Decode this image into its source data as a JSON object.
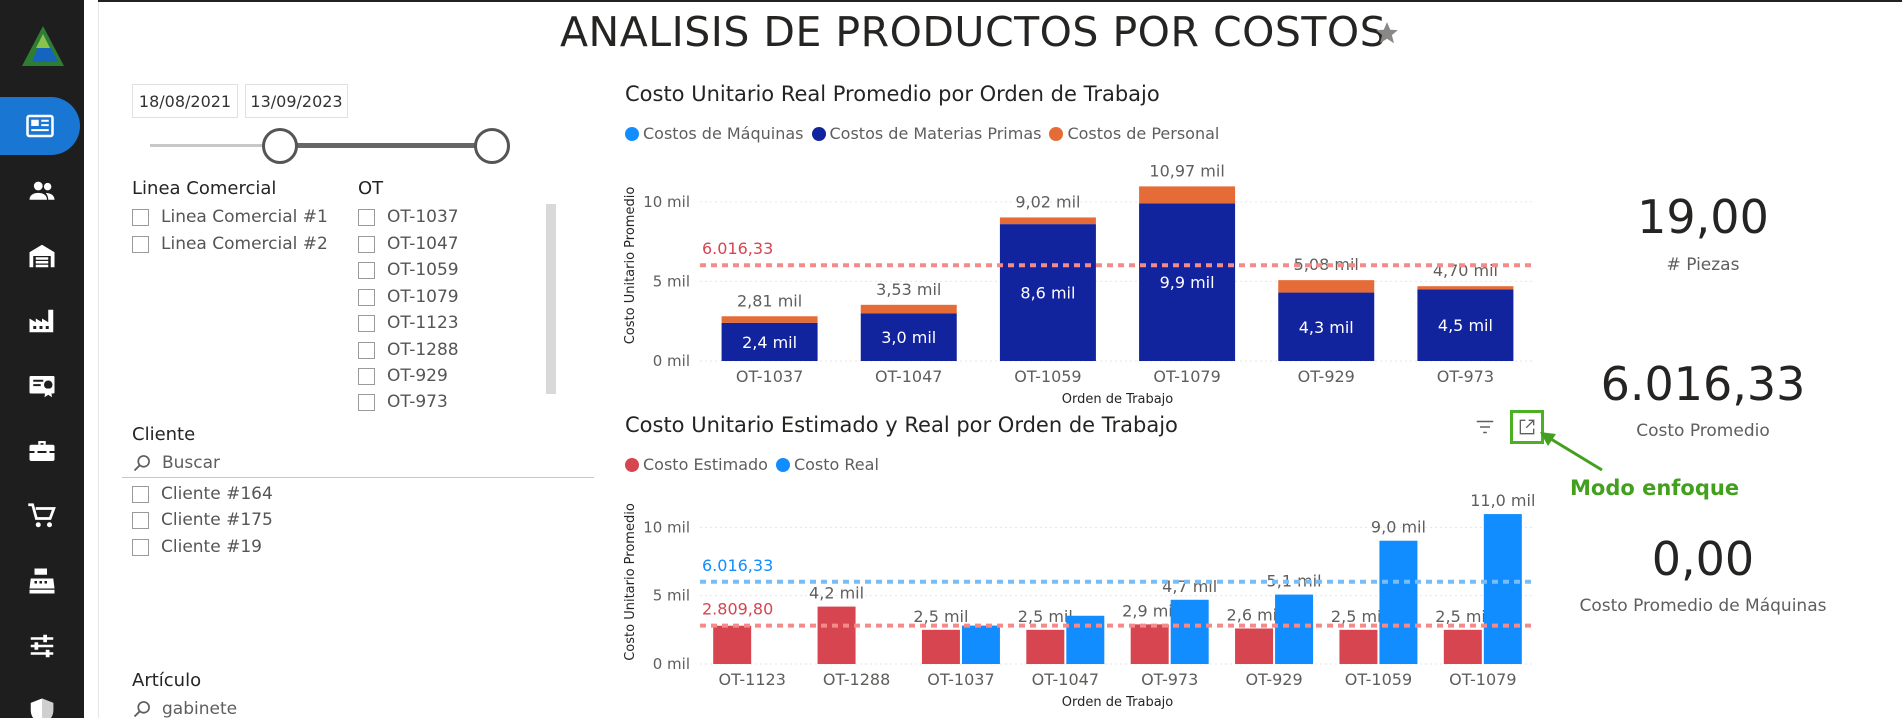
{
  "page": {
    "title": "ANALISIS DE PRODUCTOS POR COSTOS"
  },
  "icons": {
    "star": "star-icon",
    "filter": "filter-icon",
    "focus": "focus-mode-icon",
    "search": "search-icon"
  },
  "colors": {
    "maquinas": "#118dff",
    "materias": "#12239e",
    "personal": "#e66c37",
    "estimado": "#d64550",
    "real": "#118dff",
    "rail": "#1e1e1e",
    "rail_active": "#1976d2",
    "annotation": "#43a01f",
    "avg_red": "#f48a8a",
    "avg_blue": "#79bdf6"
  },
  "nav": {
    "items": [
      "news-icon",
      "people-icon",
      "warehouse-icon",
      "factory-icon",
      "certificate-icon",
      "toolbox-icon",
      "cart-icon",
      "cash-register-icon",
      "sliders-icon",
      "shield-icon"
    ]
  },
  "date_slicer": {
    "start": "18/08/2021",
    "end": "13/09/2023"
  },
  "slicers": {
    "linea": {
      "title": "Linea Comercial",
      "items": [
        "Linea Comercial #1",
        "Linea Comercial #2"
      ]
    },
    "ot": {
      "title": "OT",
      "items": [
        "OT-1037",
        "OT-1047",
        "OT-1059",
        "OT-1079",
        "OT-1123",
        "OT-1288",
        "OT-929",
        "OT-973"
      ]
    },
    "cliente": {
      "title": "Cliente",
      "search_placeholder": "Buscar",
      "items": [
        "Cliente #164",
        "Cliente #175",
        "Cliente #19"
      ]
    },
    "articulo": {
      "title": "Artículo",
      "search_value": "gabinete"
    }
  },
  "chart1": {
    "title": "Costo Unitario Real Promedio por Orden de Trabajo",
    "legend": [
      "Costos de Máquinas",
      "Costos de Materias Primas",
      "Costos de Personal"
    ]
  },
  "chart2": {
    "title": "Costo Unitario Estimado y Real por Orden de Trabajo",
    "legend": [
      "Costo Estimado",
      "Costo Real"
    ]
  },
  "annotation": {
    "label": "Modo enfoque"
  },
  "cards": [
    {
      "value": "19,00",
      "label": "# Piezas"
    },
    {
      "value": "6.016,33",
      "label": "Costo Promedio"
    },
    {
      "value": "0,00",
      "label": "Costo Promedio de Máquinas"
    }
  ],
  "chart_data": [
    {
      "type": "bar",
      "stacked": true,
      "title": "Costo Unitario Real Promedio por Orden de Trabajo",
      "xlabel": "Orden de Trabajo",
      "ylabel": "Costo Unitario Promedio",
      "ylim": [
        0,
        12000
      ],
      "yticks": [
        0,
        5000,
        10000
      ],
      "yticklabels": [
        "0 mil",
        "5 mil",
        "10 mil"
      ],
      "categories": [
        "OT-1037",
        "OT-1047",
        "OT-1059",
        "OT-1079",
        "OT-929",
        "OT-973"
      ],
      "series": [
        {
          "name": "Costos de Máquinas",
          "values": [
            0,
            0,
            0,
            0,
            0,
            0
          ]
        },
        {
          "name": "Costos de Materias Primas",
          "values": [
            2400,
            3000,
            8600,
            9900,
            4300,
            4500
          ],
          "labels": [
            "2,4 mil",
            "3,0 mil",
            "8,6 mil",
            "9,9 mil",
            "4,3 mil",
            "4,5 mil"
          ]
        },
        {
          "name": "Costos de Personal",
          "values": [
            410,
            530,
            420,
            1070,
            780,
            200
          ]
        }
      ],
      "totals": [
        2810,
        3530,
        9020,
        10970,
        5080,
        4700
      ],
      "total_labels": [
        "2,81 mil",
        "3,53 mil",
        "9,02 mil",
        "10,97 mil",
        "5,08 mil",
        "4,70 mil"
      ],
      "reference_lines": [
        {
          "value": 6016.33,
          "label": "6.016,33"
        }
      ]
    },
    {
      "type": "bar",
      "stacked": false,
      "title": "Costo Unitario Estimado y Real por Orden de Trabajo",
      "xlabel": "Orden de Trabajo",
      "ylabel": "Costo Unitario Promedio",
      "ylim": [
        0,
        12000
      ],
      "yticks": [
        0,
        5000,
        10000
      ],
      "yticklabels": [
        "0 mil",
        "5 mil",
        "10 mil"
      ],
      "categories": [
        "OT-1123",
        "OT-1288",
        "OT-1037",
        "OT-1047",
        "OT-973",
        "OT-929",
        "OT-1059",
        "OT-1079"
      ],
      "series": [
        {
          "name": "Costo Estimado",
          "values": [
            2800,
            4200,
            2500,
            2500,
            2900,
            2600,
            2500,
            2500
          ],
          "labels": [
            "",
            "4,2 mil",
            "2,5 mil",
            "2,5 mil",
            "2,9 mil",
            "2,6 mil",
            "2,5 mil",
            "2,5 mil"
          ]
        },
        {
          "name": "Costo Real",
          "values": [
            null,
            null,
            2810,
            3530,
            4700,
            5080,
            9020,
            10970
          ],
          "labels": [
            "",
            "",
            "",
            "",
            "4,7 mil",
            "5,1 mil",
            "9,0 mil",
            "11,0 mil"
          ]
        }
      ],
      "reference_lines": [
        {
          "value": 6016.33,
          "label": "6.016,33",
          "series": "Costo Real"
        },
        {
          "value": 2809.8,
          "label": "2.809,80",
          "series": "Costo Estimado"
        }
      ]
    }
  ]
}
